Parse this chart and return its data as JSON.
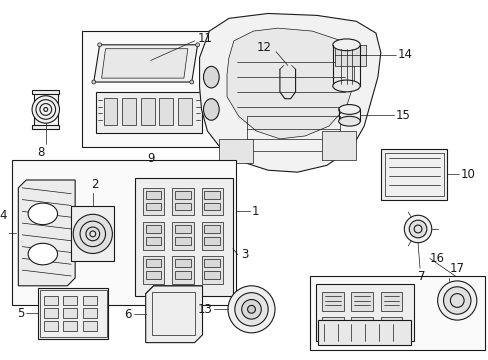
{
  "bg_color": "#ffffff",
  "line_color": "#1a1a1a",
  "text_color": "#000000",
  "lw_thin": 0.5,
  "lw_med": 0.8,
  "lw_thick": 1.0,
  "font_size": 7.5,
  "label_font_size": 8.5
}
